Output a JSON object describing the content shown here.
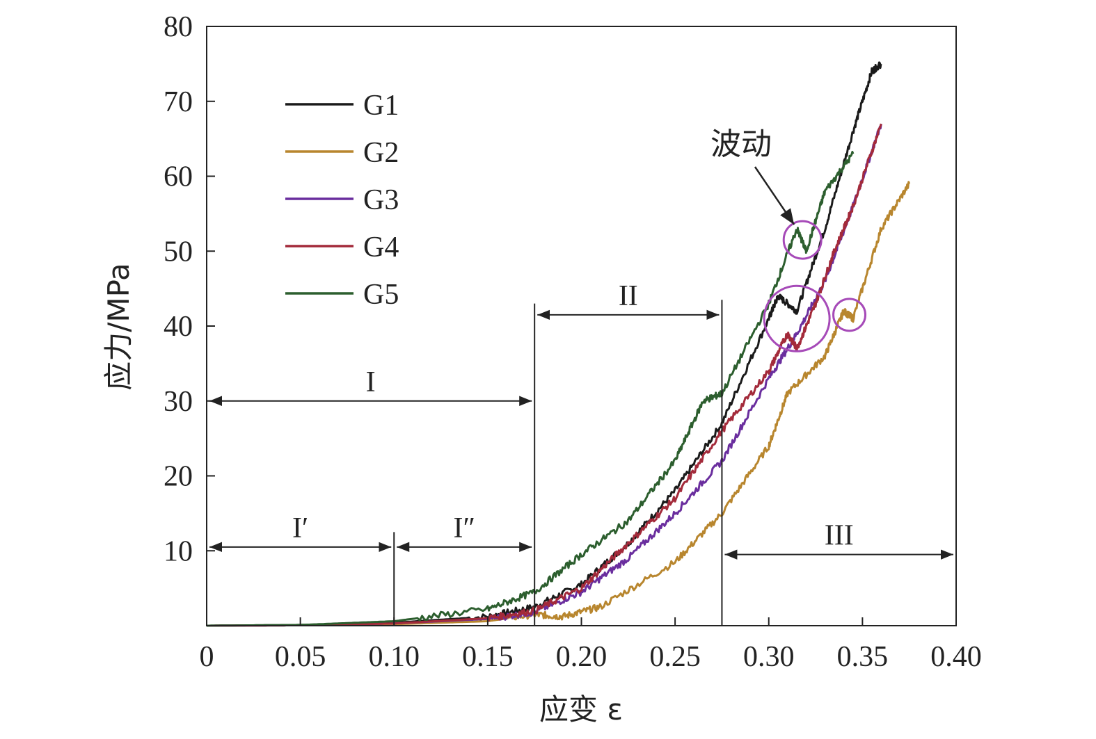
{
  "chart_data": {
    "type": "line",
    "title": "",
    "xlabel": "应变 ε",
    "ylabel": "应力/MPa",
    "xlim": [
      0,
      0.4
    ],
    "ylim": [
      0,
      80
    ],
    "x_ticks": [
      0,
      0.05,
      0.1,
      0.15,
      0.2,
      0.25,
      0.3,
      0.35,
      0.4
    ],
    "x_tick_labels": [
      "0",
      "0.05",
      "0.10",
      "0.15",
      "0.20",
      "0.25",
      "0.30",
      "0.35",
      "0.40"
    ],
    "y_ticks": [
      10,
      20,
      30,
      40,
      50,
      60,
      70,
      80
    ],
    "y_tick_labels": [
      "10",
      "20",
      "30",
      "40",
      "50",
      "60",
      "70",
      "80"
    ],
    "grid": false,
    "legend_position": "top-left",
    "series": [
      {
        "name": "G1",
        "color": "#1a1a1a",
        "x": [
          0,
          0.05,
          0.1,
          0.15,
          0.175,
          0.2,
          0.225,
          0.25,
          0.275,
          0.3,
          0.305,
          0.315,
          0.33,
          0.345,
          0.355,
          0.36
        ],
        "y": [
          0,
          0.1,
          0.4,
          1.2,
          2.5,
          5.5,
          11,
          18,
          27,
          41,
          44,
          42,
          53,
          66,
          74,
          75
        ]
      },
      {
        "name": "G2",
        "color": "#b8862e",
        "x": [
          0,
          0.05,
          0.1,
          0.15,
          0.175,
          0.19,
          0.21,
          0.25,
          0.275,
          0.3,
          0.31,
          0.33,
          0.34,
          0.345,
          0.36,
          0.375
        ],
        "y": [
          0,
          0.05,
          0.2,
          0.6,
          1.5,
          1.2,
          2.5,
          8.5,
          15,
          24,
          31,
          36,
          42,
          41,
          53,
          59
        ]
      },
      {
        "name": "G3",
        "color": "#6a2e9e",
        "x": [
          0,
          0.05,
          0.1,
          0.15,
          0.175,
          0.2,
          0.225,
          0.25,
          0.275,
          0.3,
          0.315,
          0.33,
          0.345,
          0.36
        ],
        "y": [
          0,
          0.05,
          0.3,
          0.9,
          1.8,
          4.5,
          9,
          15,
          22,
          33,
          39,
          46,
          56,
          67
        ]
      },
      {
        "name": "G4",
        "color": "#a32a3a",
        "x": [
          0,
          0.05,
          0.1,
          0.15,
          0.175,
          0.2,
          0.225,
          0.25,
          0.275,
          0.3,
          0.31,
          0.315,
          0.325,
          0.335,
          0.345,
          0.36
        ],
        "y": [
          0,
          0.05,
          0.3,
          1.0,
          2.0,
          5.0,
          11,
          17,
          26,
          34,
          39,
          37,
          43,
          50,
          56,
          67
        ]
      },
      {
        "name": "G5",
        "color": "#2c5e2e",
        "x": [
          0,
          0.05,
          0.1,
          0.15,
          0.175,
          0.2,
          0.225,
          0.25,
          0.265,
          0.275,
          0.3,
          0.315,
          0.32,
          0.33,
          0.345
        ],
        "y": [
          0,
          0.1,
          0.6,
          2.2,
          4.5,
          9.5,
          14,
          22,
          30,
          31,
          43,
          53,
          50,
          58,
          63
        ]
      }
    ],
    "regions": [
      {
        "label": "I",
        "x_start": 0,
        "x_end": 0.175,
        "y": 30
      },
      {
        "label": "II",
        "x_start": 0.175,
        "x_end": 0.275,
        "y": 41.5
      },
      {
        "label": "III",
        "x_start": 0.275,
        "x_end": 0.4,
        "y": 9.5
      },
      {
        "label": "I′",
        "x_start": 0,
        "x_end": 0.1,
        "y": 10.5
      },
      {
        "label": "I″",
        "x_start": 0.1,
        "x_end": 0.175,
        "y": 10.5
      }
    ],
    "boundaries": [
      {
        "x": 0.175,
        "y_top": 43
      },
      {
        "x": 0.275,
        "y_top": 43.5
      },
      {
        "x": 0.1,
        "y_top": 12.5
      }
    ],
    "annotation": {
      "text": "波动",
      "circles": [
        {
          "x": 0.318,
          "y": 51.5,
          "color": "#a64ab8"
        },
        {
          "x": 0.315,
          "y": 41,
          "color": "#a64ab8"
        },
        {
          "x": 0.343,
          "y": 41.5,
          "color": "#a64ab8"
        }
      ]
    }
  }
}
